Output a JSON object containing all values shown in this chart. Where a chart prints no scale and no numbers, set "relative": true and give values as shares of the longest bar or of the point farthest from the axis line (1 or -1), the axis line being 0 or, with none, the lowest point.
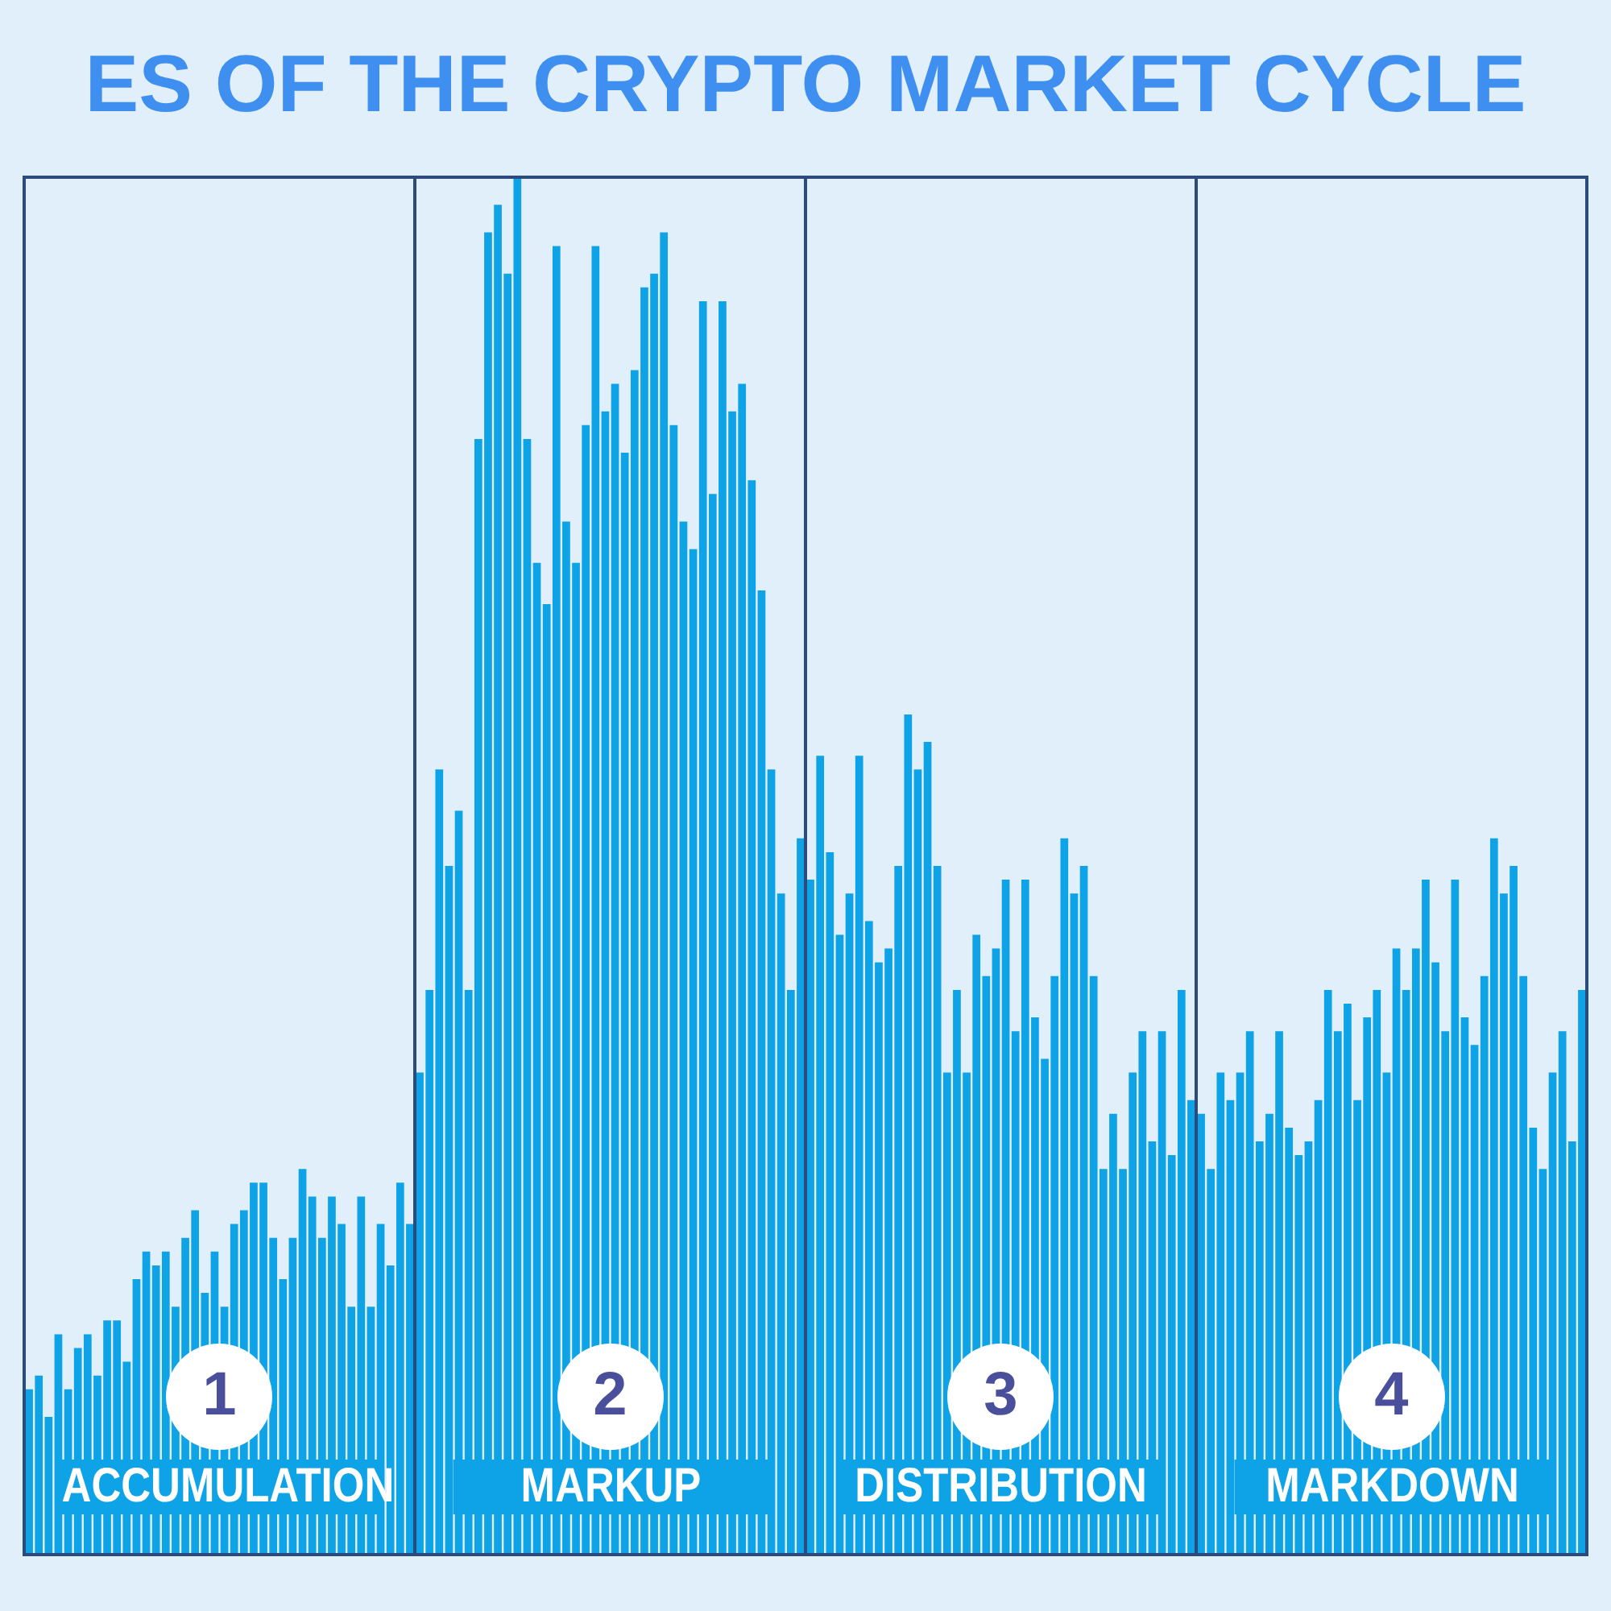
{
  "chart_data": {
    "type": "bar",
    "title": "ES OF THE CRYPTO MARKET CYCLE",
    "relative": true,
    "color": "#0ea2e6",
    "categories": [
      null,
      null,
      null,
      null,
      null,
      null,
      null,
      null,
      null,
      null,
      null,
      null,
      null,
      null,
      null,
      null,
      null,
      null,
      null,
      null,
      null,
      null,
      null,
      null,
      null,
      null,
      null,
      null,
      null,
      null,
      null,
      null,
      null,
      null,
      null,
      null,
      null,
      null,
      null,
      null,
      null,
      null,
      null,
      null,
      null,
      null,
      null,
      null,
      null,
      null,
      null,
      null,
      null,
      null,
      null,
      null,
      null,
      null,
      null,
      null,
      null,
      null,
      null,
      null,
      null,
      null,
      null,
      null,
      null,
      null,
      null,
      null,
      null,
      null,
      null,
      null,
      null,
      null,
      null,
      null,
      null,
      null,
      null,
      null,
      null,
      null,
      null,
      null,
      null,
      null,
      null,
      null,
      null,
      null,
      null,
      null,
      null,
      null,
      null,
      null,
      null,
      null,
      null,
      null,
      null,
      null,
      null,
      null,
      null,
      null,
      null,
      null,
      null,
      null,
      null,
      null,
      null,
      null,
      null,
      null,
      null,
      null,
      null,
      null,
      null,
      null,
      null,
      null,
      null,
      null,
      null,
      null,
      null,
      null,
      null,
      null,
      null,
      null,
      null,
      null,
      null,
      null,
      null,
      null,
      null,
      null,
      null,
      null,
      null,
      null,
      null,
      null,
      null,
      null,
      null,
      null,
      null,
      null,
      null,
      null
    ],
    "values": [
      0.12,
      0.13,
      0.1,
      0.16,
      0.12,
      0.15,
      0.16,
      0.13,
      0.17,
      0.17,
      0.14,
      0.2,
      0.22,
      0.21,
      0.22,
      0.18,
      0.23,
      0.25,
      0.19,
      0.22,
      0.18,
      0.24,
      0.25,
      0.27,
      0.27,
      0.23,
      0.2,
      0.23,
      0.28,
      0.26,
      0.23,
      0.26,
      0.24,
      0.18,
      0.26,
      0.18,
      0.24,
      0.21,
      0.27,
      0.24,
      0.35,
      0.41,
      0.57,
      0.5,
      0.54,
      0.41,
      0.81,
      0.96,
      0.98,
      0.93,
      1.0,
      0.81,
      0.72,
      0.69,
      0.95,
      0.75,
      0.72,
      0.82,
      0.95,
      0.83,
      0.85,
      0.8,
      0.86,
      0.92,
      0.93,
      0.96,
      0.82,
      0.75,
      0.73,
      0.91,
      0.77,
      0.91,
      0.83,
      0.85,
      0.78,
      0.7,
      0.57,
      0.48,
      0.41,
      0.52,
      0.49,
      0.58,
      0.51,
      0.45,
      0.48,
      0.58,
      0.46,
      0.43,
      0.44,
      0.5,
      0.61,
      0.57,
      0.59,
      0.5,
      0.35,
      0.41,
      0.35,
      0.45,
      0.42,
      0.44,
      0.49,
      0.38,
      0.49,
      0.39,
      0.36,
      0.42,
      0.52,
      0.48,
      0.5,
      0.42,
      0.28,
      0.32,
      0.28,
      0.35,
      0.38,
      0.3,
      0.38,
      0.29,
      0.41,
      0.33,
      0.32,
      0.28,
      0.35,
      0.33,
      0.35,
      0.38,
      0.3,
      0.32,
      0.38,
      0.31,
      0.29,
      0.3,
      0.33,
      0.41,
      0.38,
      0.4,
      0.33,
      0.39,
      0.41,
      0.35,
      0.44,
      0.41,
      0.44,
      0.49,
      0.43,
      0.38,
      0.49,
      0.39,
      0.37,
      0.42,
      0.52,
      0.48,
      0.5,
      0.42,
      0.31,
      0.28,
      0.35,
      0.38,
      0.3,
      0.41
    ],
    "annotations": [
      "1",
      "ACCUMULATION",
      "2",
      "MARKUP",
      "3",
      "DISTRIBUTION",
      "4",
      "MARKDOWN"
    ]
  }
}
